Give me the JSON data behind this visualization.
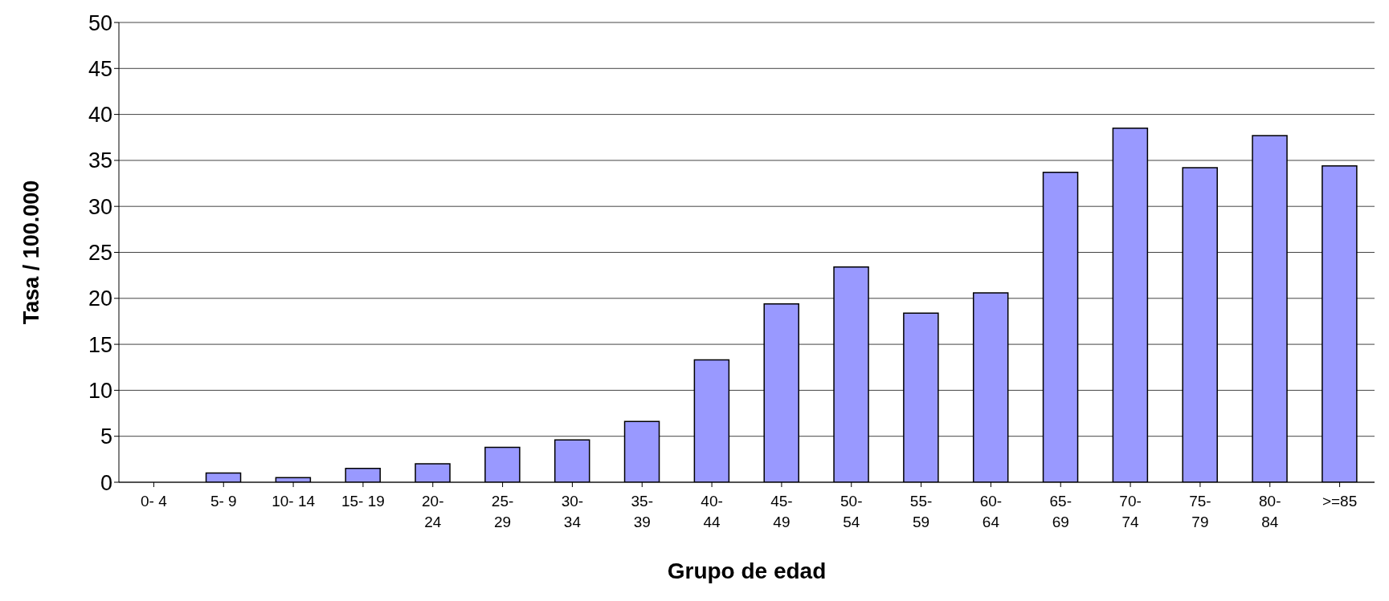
{
  "chart_data": {
    "type": "bar",
    "xlabel": "Grupo de edad",
    "ylabel": "Tasa / 100.000",
    "categories": [
      "0- 4",
      "5- 9",
      "10- 14",
      "15- 19",
      "20-\n24",
      "25-\n29",
      "30-\n34",
      "35-\n39",
      "40-\n44",
      "45-\n49",
      "50-\n54",
      "55-\n59",
      "60-\n64",
      "65-\n69",
      "70-\n74",
      "75-\n79",
      "80-\n84",
      ">=85"
    ],
    "values": [
      0,
      1,
      0.5,
      1.5,
      2,
      3.8,
      4.6,
      6.6,
      13.3,
      19.4,
      23.4,
      18.4,
      20.6,
      33.7,
      38.5,
      34.2,
      37.7,
      34.4
    ],
    "color": "#9999ff",
    "ylim": [
      0,
      50
    ],
    "yticks": [
      0,
      5,
      10,
      15,
      20,
      25,
      30,
      35,
      40,
      45,
      50
    ],
    "grid": "y"
  }
}
